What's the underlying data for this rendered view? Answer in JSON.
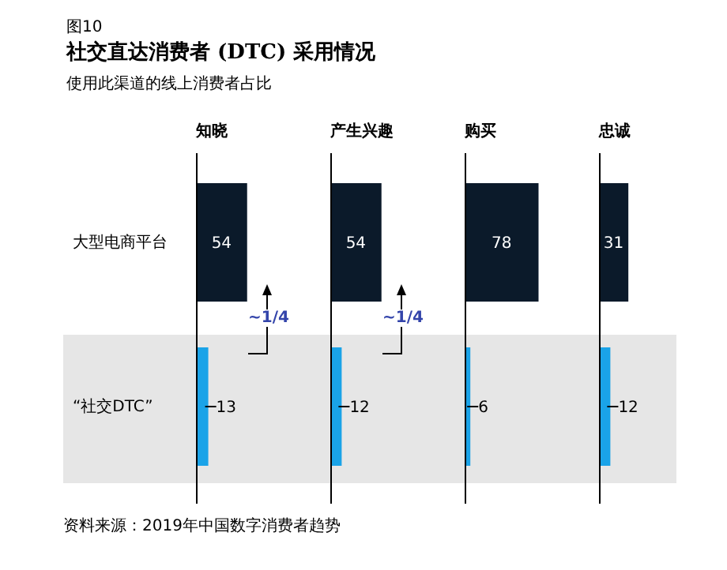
{
  "chart_data": [
    {
      "type": "bar",
      "orientation": "horizontal",
      "title": "社交直达消费者 (DTC) 采用情况",
      "subtitle": "使用此渠道的线上消费者占比",
      "xlabel": "知晓",
      "categories": [
        "大型电商平台",
        "“社交DTC”"
      ],
      "values": [
        54,
        13
      ],
      "colors": [
        "#0b1a2a",
        "#1aa3e8"
      ],
      "data_labels": true,
      "tick_labels": "y",
      "bands": [
        {
          "axis": "y",
          "from": "“社交DTC”",
          "to": "“社交DTC”",
          "color": "#e6e6e6"
        }
      ],
      "annotations": [
        "图10",
        "~1/4",
        "资料来源：2019年中国数字消费者趋势"
      ]
    },
    {
      "type": "bar",
      "orientation": "horizontal",
      "xlabel": "产生兴趣",
      "categories": [
        "大型电商平台",
        "“社交DTC”"
      ],
      "values": [
        54,
        12
      ],
      "colors": [
        "#0b1a2a",
        "#1aa3e8"
      ],
      "data_labels": true,
      "tick_labels": false,
      "bands": [
        {
          "axis": "y",
          "from": "“社交DTC”",
          "to": "“社交DTC”",
          "color": "#e6e6e6"
        }
      ],
      "annotations": [
        "~1/4"
      ]
    },
    {
      "type": "bar",
      "orientation": "horizontal",
      "xlabel": "购买",
      "categories": [
        "大型电商平台",
        "“社交DTC”"
      ],
      "values": [
        78,
        6
      ],
      "colors": [
        "#0b1a2a",
        "#1aa3e8"
      ],
      "data_labels": true,
      "tick_labels": false,
      "bands": [
        {
          "axis": "y",
          "from": "“社交DTC”",
          "to": "“社交DTC”",
          "color": "#e6e6e6"
        }
      ]
    },
    {
      "type": "bar",
      "orientation": "horizontal",
      "xlabel": "忠诚",
      "categories": [
        "大型电商平台",
        "“社交DTC”"
      ],
      "values": [
        31,
        12
      ],
      "colors": [
        "#0b1a2a",
        "#1aa3e8"
      ],
      "data_labels": true,
      "tick_labels": false,
      "bands": [
        {
          "axis": "y",
          "from": "“社交DTC”",
          "to": "“社交DTC”",
          "color": "#e6e6e6"
        }
      ]
    }
  ]
}
